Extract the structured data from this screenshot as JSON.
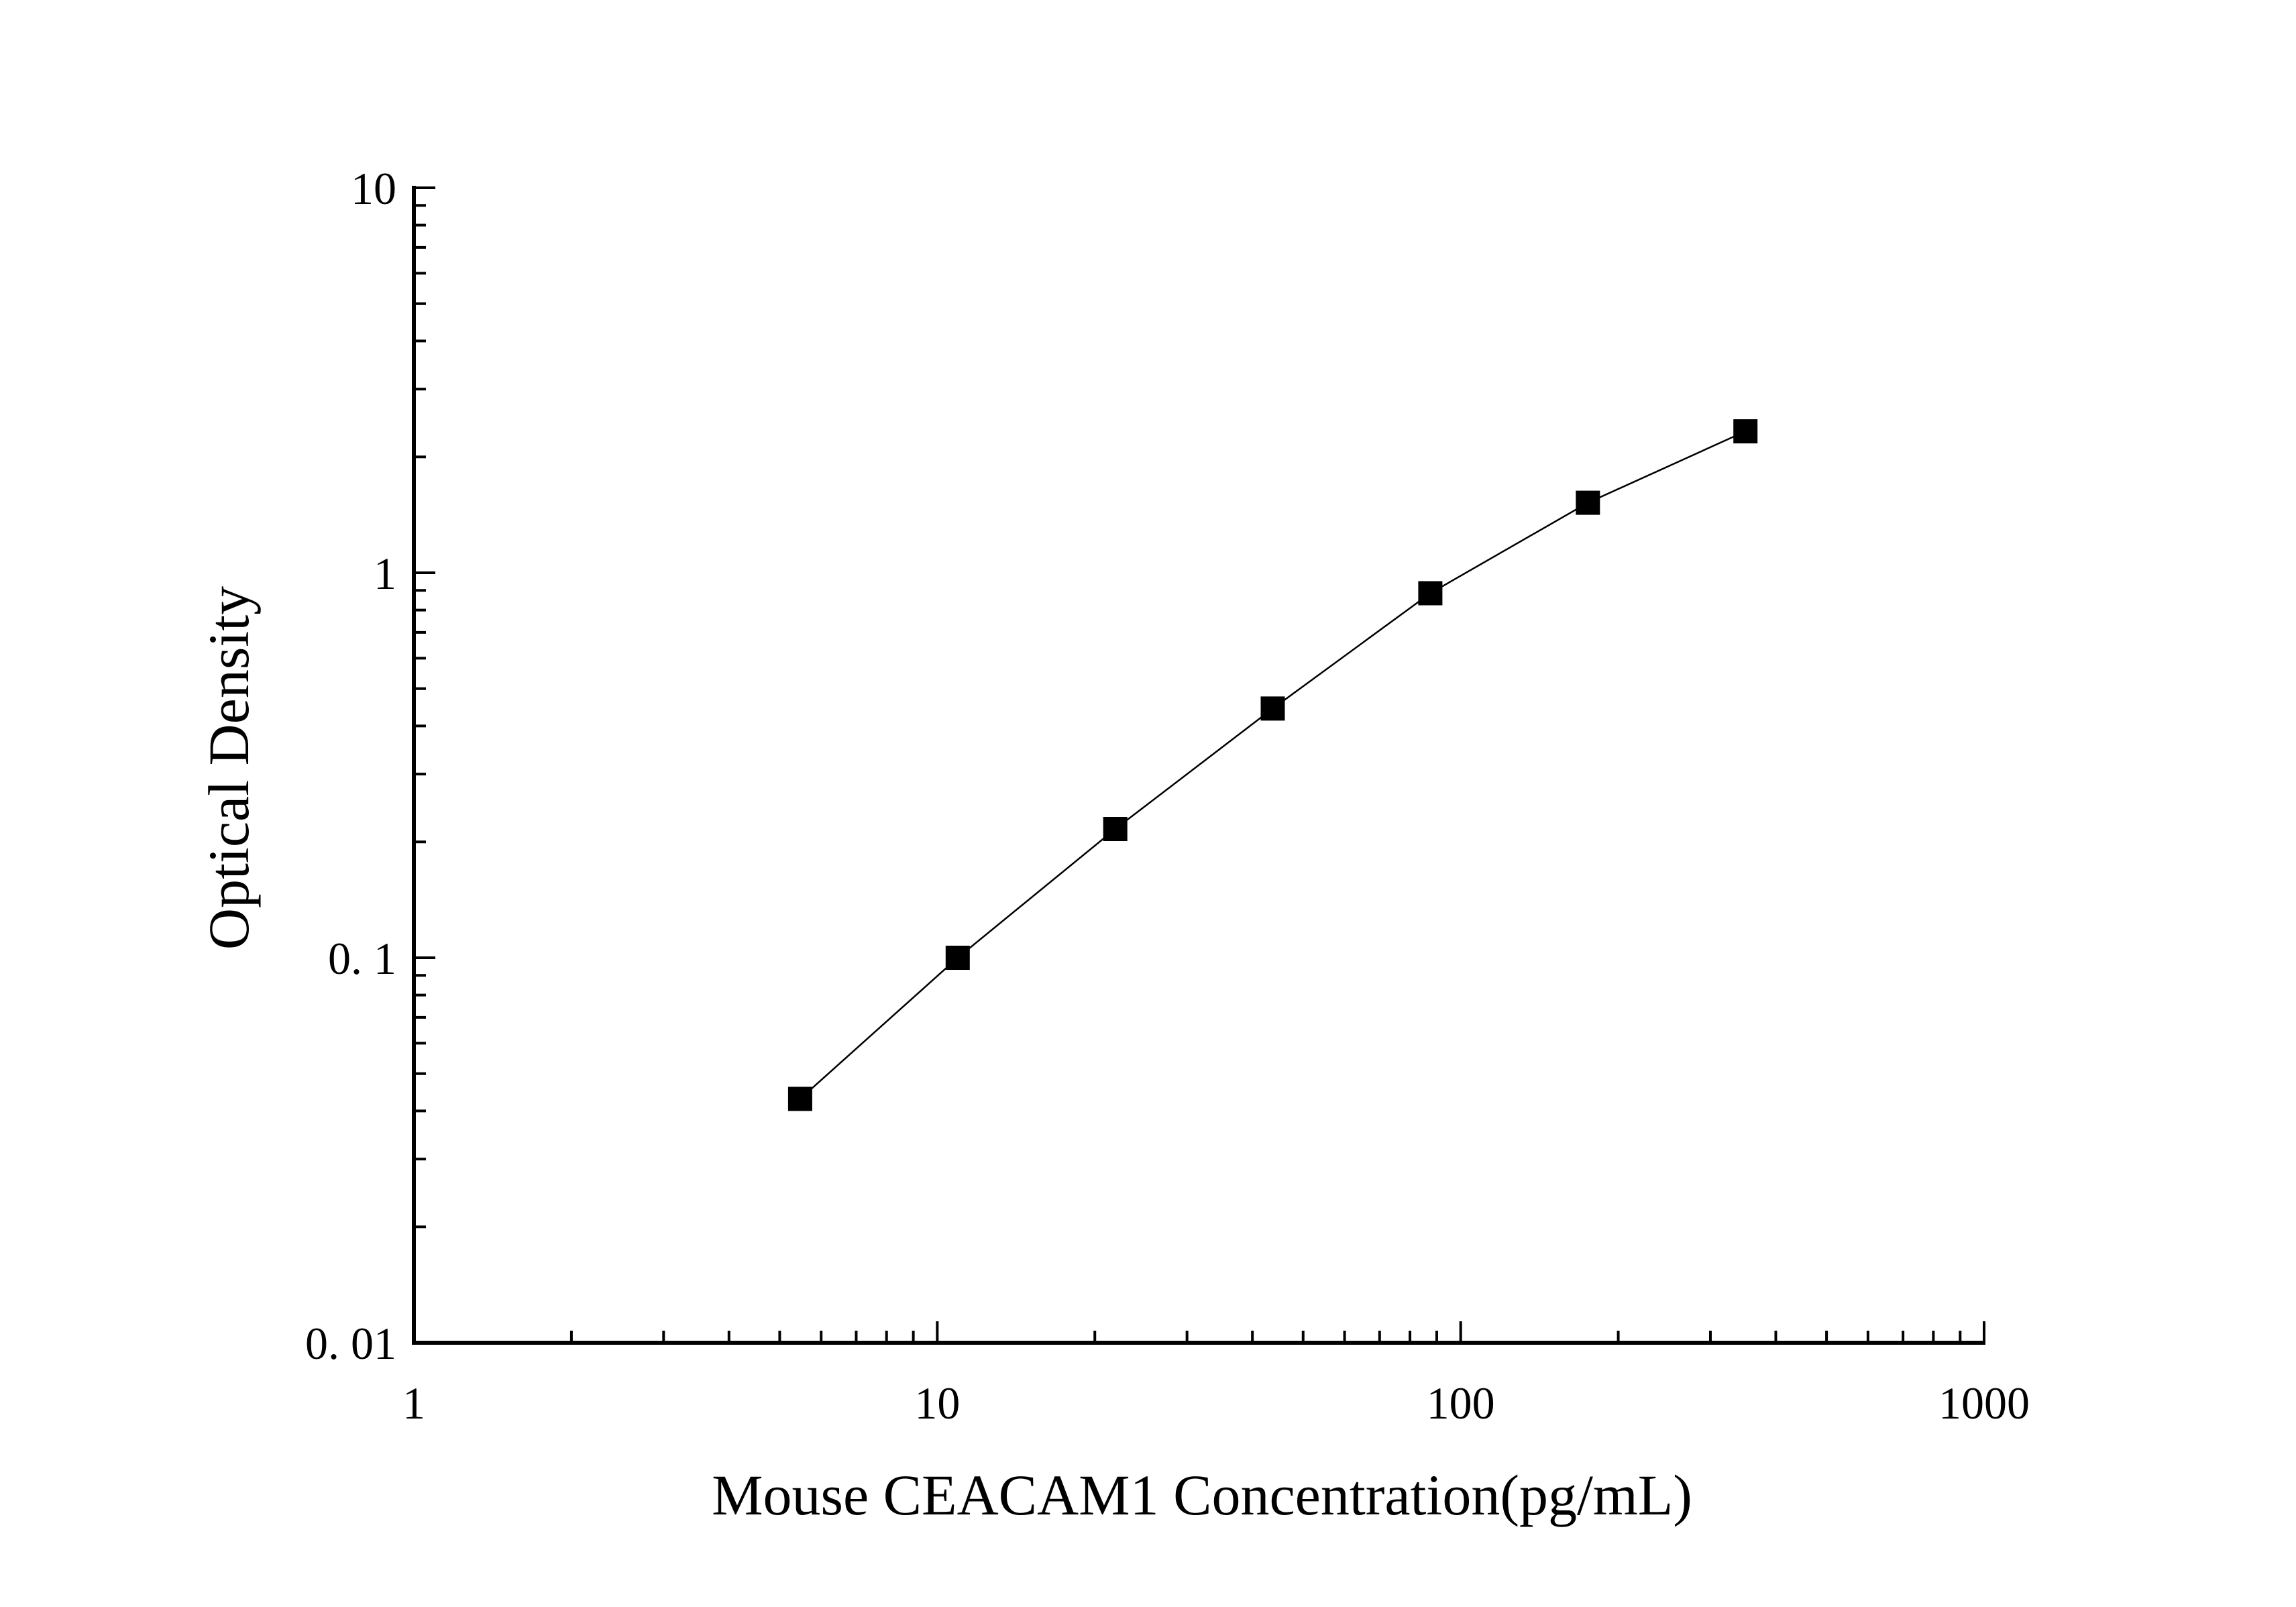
{
  "chart_data": {
    "type": "line",
    "title": "",
    "xlabel": "Mouse CEACAM1 Concentration(pg/mL)",
    "ylabel": "Optical Density",
    "x_scale": "log",
    "y_scale": "log",
    "xlim": [
      1,
      1000
    ],
    "ylim": [
      0.01,
      10
    ],
    "x_ticks": [
      1,
      10,
      100,
      1000
    ],
    "x_tick_labels": [
      "1",
      "10",
      "100",
      "1000"
    ],
    "y_ticks": [
      0.01,
      0.1,
      1,
      10
    ],
    "y_tick_labels": [
      "0. 01",
      "0. 1",
      "1",
      "10"
    ],
    "grid": false,
    "legend": false,
    "marker": "square",
    "color": "#000000",
    "series": [
      {
        "x": [
          5.47,
          10.94,
          21.88,
          43.75,
          87.5,
          175,
          350
        ],
        "y": [
          0.043,
          0.1,
          0.216,
          0.444,
          0.885,
          1.52,
          2.33
        ]
      }
    ]
  }
}
